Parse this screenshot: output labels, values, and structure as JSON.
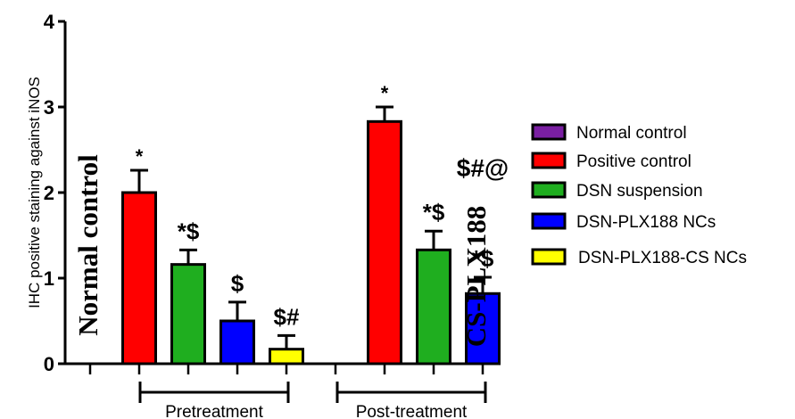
{
  "chart_data": {
    "type": "bar",
    "ylabel": "IHC positive staining against iNOS",
    "ylim": [
      0,
      4
    ],
    "yticks": [
      "0",
      "1",
      "2",
      "3",
      "4"
    ],
    "groups": [
      {
        "label": "Pretreatment",
        "bars": [
          {
            "series": "Normal control",
            "value": 0,
            "error": 0,
            "annotation": ""
          },
          {
            "series": "Positive control",
            "value": 2.0,
            "error": 0.26,
            "annotation": "*"
          },
          {
            "series": "DSN suspension",
            "value": 1.16,
            "error": 0.17,
            "annotation": "*$"
          },
          {
            "series": "DSN-PLX188 NCs",
            "value": 0.5,
            "error": 0.22,
            "annotation": "$"
          },
          {
            "series": "DSN-PLX188-CS NCs",
            "value": 0.17,
            "error": 0.16,
            "annotation": "$#"
          }
        ]
      },
      {
        "label": "Post-treatment",
        "bars": [
          {
            "series": "Normal control",
            "value": 0,
            "error": 0,
            "annotation": ""
          },
          {
            "series": "Positive control",
            "value": 2.83,
            "error": 0.17,
            "annotation": "*"
          },
          {
            "series": "DSN suspension",
            "value": 1.33,
            "error": 0.22,
            "annotation": "*$"
          },
          {
            "series": "DSN-PLX188 NCs",
            "value": 0.82,
            "error": 0.19,
            "annotation": "*$"
          },
          {
            "series": "DSN-PLX188-CS NCs",
            "value": 0,
            "error": 0,
            "annotation": "$#@"
          }
        ]
      }
    ],
    "series": [
      {
        "name": "Normal control",
        "color": "#7a1fa2"
      },
      {
        "name": "Positive control",
        "color": "#ff0000"
      },
      {
        "name": "DSN suspension",
        "color": "#1fae1f"
      },
      {
        "name": "DSN-PLX188 NCs",
        "color": "#0000ff"
      },
      {
        "name": "DSN-PLX188-CS NCs",
        "color": "#ffff00"
      }
    ],
    "overlay_text": [
      "Normal control",
      "CS-PLX188"
    ],
    "legend_position": "right",
    "grid": false
  }
}
